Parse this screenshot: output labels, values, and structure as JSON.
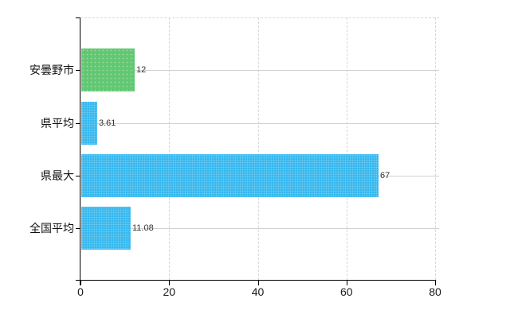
{
  "chart_data": {
    "type": "bar",
    "orientation": "horizontal",
    "title": "",
    "categories": [
      "安曇野市",
      "県平均",
      "県最大",
      "全国平均"
    ],
    "values": [
      12,
      3.61,
      67,
      11.08
    ],
    "value_labels": [
      "12",
      "3.61",
      "67",
      "11.08"
    ],
    "bar_colors": [
      "green",
      "blue",
      "blue",
      "blue"
    ],
    "xlim": [
      0,
      80
    ],
    "x_ticks": [
      "0",
      "20",
      "40",
      "60",
      "80"
    ],
    "grid": true,
    "legend_position": "none"
  },
  "colors": {
    "bar_green": "#5fc877",
    "bar_blue": "#34b7ee",
    "gridline": "#d0d0d0",
    "axis": "#000000",
    "text": "#1a1a1a"
  }
}
